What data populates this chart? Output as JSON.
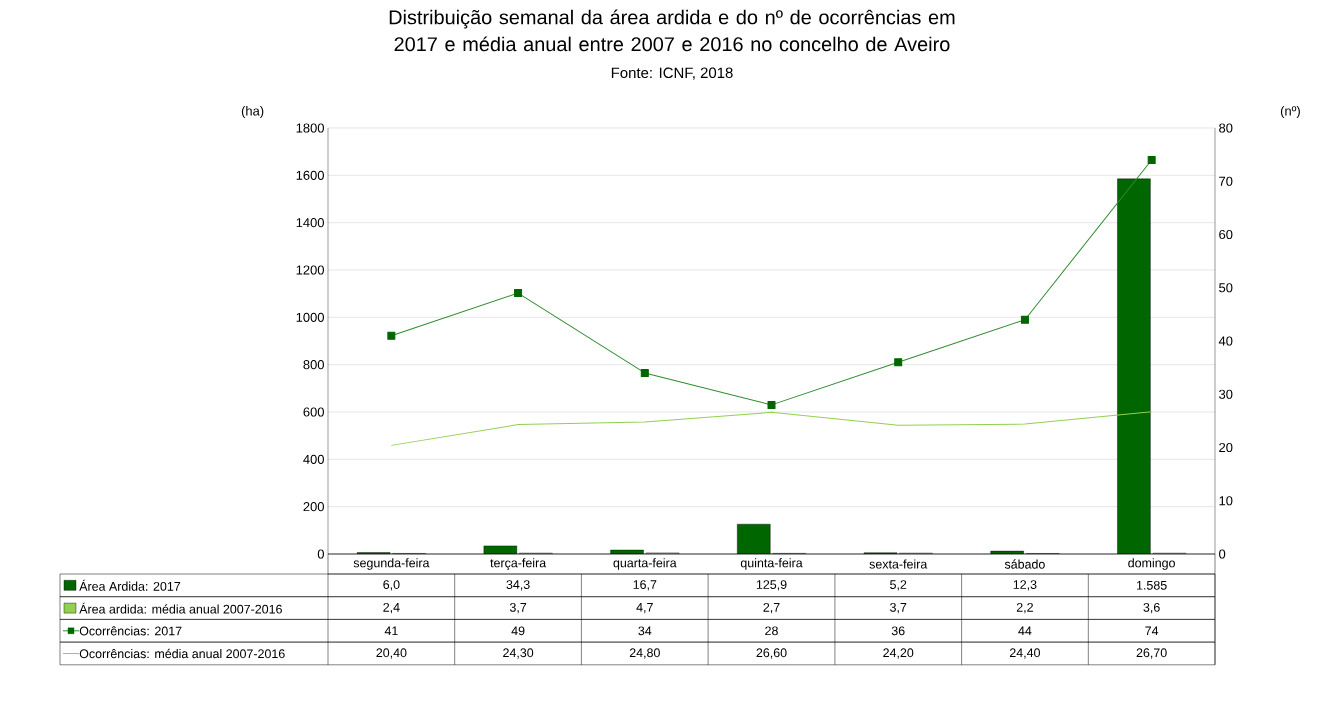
{
  "chart_data": {
    "type": "bar",
    "title": "Distribuição semanal da área ardida e do nº de ocorrências em 2017 e média anual entre 2007 e 2016 no concelho de Aveiro",
    "annotations": [
      "Fonte: ICNF, 2018"
    ],
    "ylabel": "(ha)",
    "y2label": "(nº)",
    "categories": [
      "segunda-feira",
      "terça-feira",
      "quarta-feira",
      "quinta-feira",
      "sexta-feira",
      "sábado",
      "domingo"
    ],
    "series": [
      {
        "name": "Área Ardida: 2017",
        "color": "#006600",
        "values": [
          6.0,
          34.3,
          16.7,
          125.9,
          5.2,
          12.3,
          1585
        ],
        "value_labels": [
          "6,0",
          "34,3",
          "16,7",
          "125,9",
          "5,2",
          "12,3",
          "1.585"
        ]
      },
      {
        "name": "Área ardida: média anual  2007-2016",
        "color": "#92d050",
        "values": [
          2.4,
          3.7,
          4.7,
          2.7,
          3.7,
          2.2,
          3.6
        ],
        "value_labels": [
          "2,4",
          "3,7",
          "4,7",
          "2,7",
          "3,7",
          "2,2",
          "3,6"
        ]
      },
      {
        "name": "Ocorrências: 2017",
        "type": "line",
        "axis": "y2",
        "marker": "square",
        "color": "#2e8b2e",
        "values": [
          41,
          49,
          34,
          28,
          36,
          44,
          74
        ],
        "value_labels": [
          "41",
          "49",
          "34",
          "28",
          "36",
          "44",
          "74"
        ]
      },
      {
        "name": "Ocorrências: média anual 2007-2016",
        "type": "line",
        "axis": "y2",
        "marker": "none",
        "color": "#92d050",
        "values": [
          20.4,
          24.3,
          24.8,
          26.6,
          24.2,
          24.4,
          26.7
        ],
        "value_labels": [
          "20,40",
          "24,30",
          "24,80",
          "26,60",
          "24,20",
          "24,40",
          "26,70"
        ]
      }
    ],
    "ylim": [
      0,
      1800
    ],
    "yticks": [
      0,
      200,
      400,
      600,
      800,
      1000,
      1200,
      1400,
      1600,
      1800
    ],
    "y2lim": [
      0,
      80
    ],
    "y2ticks": [
      0,
      10,
      20,
      30,
      40,
      50,
      60,
      70,
      80
    ],
    "grid": "y",
    "legend": "bottom"
  }
}
